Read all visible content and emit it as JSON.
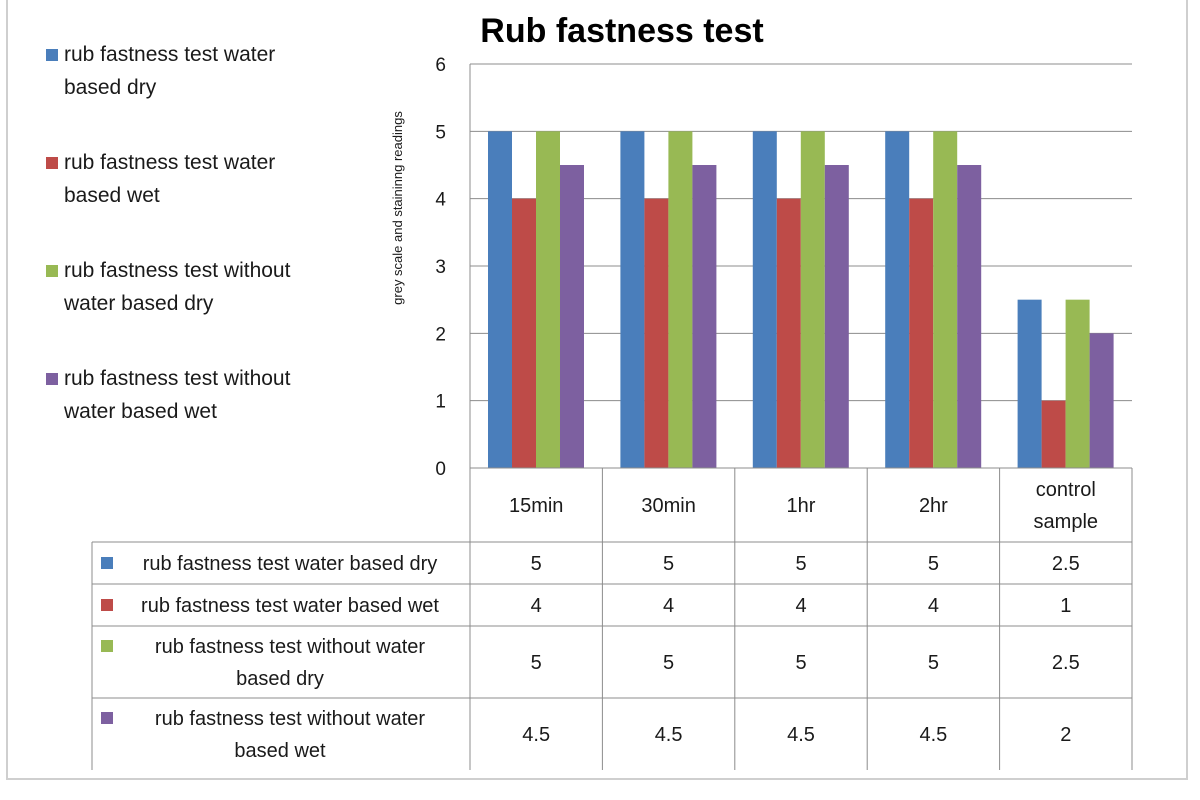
{
  "chart_data": {
    "type": "bar",
    "title": "Rub fastness test",
    "xlabel": "",
    "ylabel": "grey scale and staininng readings",
    "ylim": [
      0,
      6
    ],
    "yticks": [
      "0",
      "1",
      "2",
      "3",
      "4",
      "5",
      "6"
    ],
    "grid": true,
    "legend_position": "left",
    "categories": [
      "15min",
      "30min",
      "1hr",
      "2hr",
      "control sample"
    ],
    "series": [
      {
        "name": "rub fastness test water based dry",
        "legend_lines": [
          "rub fastness test water",
          "based dry"
        ],
        "table_lines": [
          "rub fastness test water based dry"
        ],
        "color": "#4a7ebb",
        "values": [
          5,
          5,
          5,
          5,
          2.5
        ],
        "labels": [
          "5",
          "5",
          "5",
          "5",
          "2.5"
        ]
      },
      {
        "name": "rub fastness test water based wet",
        "legend_lines": [
          "rub fastness test water",
          "based wet"
        ],
        "table_lines": [
          "rub fastness test water based wet"
        ],
        "color": "#be4b48",
        "values": [
          4,
          4,
          4,
          4,
          1
        ],
        "labels": [
          "4",
          "4",
          "4",
          "4",
          "1"
        ]
      },
      {
        "name": "rub fastness test without water based dry",
        "legend_lines": [
          "rub fastness test without",
          "water based dry"
        ],
        "table_lines": [
          "rub fastness test without water",
          "based dry"
        ],
        "color": "#98b954",
        "values": [
          5,
          5,
          5,
          5,
          2.5
        ],
        "labels": [
          "5",
          "5",
          "5",
          "5",
          "2.5"
        ]
      },
      {
        "name": "rub fastness test without water based wet",
        "legend_lines": [
          "rub fastness test without",
          "water based wet"
        ],
        "table_lines": [
          "rub fastness test without water",
          "based wet"
        ],
        "color": "#7d60a0",
        "values": [
          4.5,
          4.5,
          4.5,
          4.5,
          2
        ],
        "labels": [
          "4.5",
          "4.5",
          "4.5",
          "4.5",
          "2"
        ]
      }
    ]
  }
}
